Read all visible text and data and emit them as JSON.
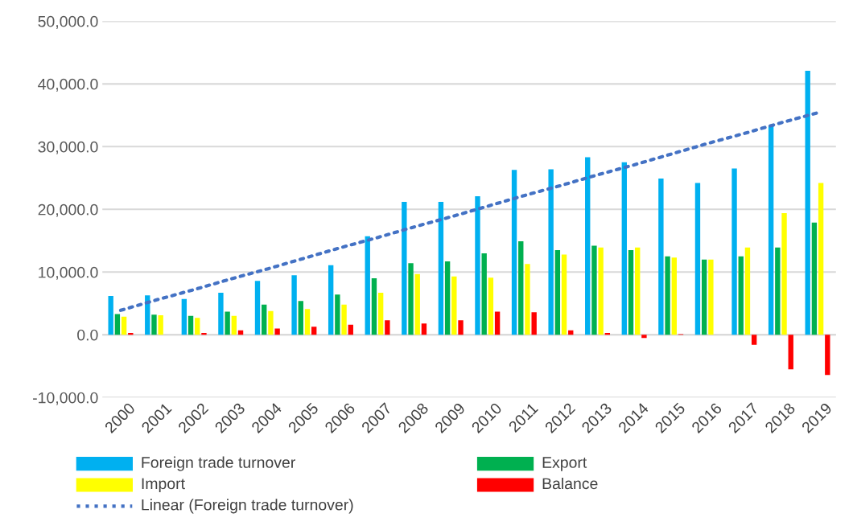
{
  "chart_data": {
    "type": "bar",
    "categories": [
      "2000",
      "2001",
      "2002",
      "2003",
      "2004",
      "2005",
      "2006",
      "2007",
      "2008",
      "2009",
      "2010",
      "2011",
      "2012",
      "2013",
      "2014",
      "2015",
      "2016",
      "2017",
      "2018",
      "2019"
    ],
    "series": [
      {
        "name": "Foreign trade turnover",
        "color": "#00b0f0",
        "values": [
          6200,
          6300,
          5700,
          6700,
          8600,
          9500,
          11100,
          15700,
          21200,
          21200,
          22100,
          26300,
          26400,
          28300,
          27500,
          24900,
          24200,
          26500,
          33400,
          42100
        ]
      },
      {
        "name": "Export",
        "color": "#00b050",
        "values": [
          3300,
          3200,
          3000,
          3700,
          4800,
          5400,
          6400,
          9000,
          11400,
          11700,
          13000,
          14900,
          13500,
          14200,
          13500,
          12500,
          12000,
          12500,
          13900,
          17900
        ]
      },
      {
        "name": "Import",
        "color": "#ffff00",
        "values": [
          2900,
          3100,
          2700,
          3000,
          3800,
          4100,
          4800,
          6700,
          9700,
          9300,
          9100,
          11300,
          12800,
          13900,
          13900,
          12300,
          12000,
          13900,
          19400,
          24200
        ]
      },
      {
        "name": "Balance",
        "color": "#ff0000",
        "values": [
          300,
          0,
          300,
          700,
          1000,
          1300,
          1600,
          2300,
          1800,
          2300,
          3700,
          3600,
          700,
          300,
          -500,
          100,
          0,
          -1600,
          -5500,
          -6400
        ]
      },
      {
        "name": "Linear (Foreign trade turnover)",
        "type": "line",
        "color": "#4472c4",
        "line_style": "dotted",
        "values": [
          3900,
          5600,
          7200,
          8900,
          10500,
          12200,
          13900,
          15500,
          17200,
          18800,
          20500,
          22200,
          23800,
          25500,
          27100,
          28800,
          30500,
          32100,
          33800,
          35400
        ]
      }
    ],
    "ylim": [
      -10000,
      50000
    ],
    "yticks": [
      {
        "value": -10000,
        "label": "-10,000.0"
      },
      {
        "value": 0,
        "label": "0.0"
      },
      {
        "value": 10000,
        "label": "10,000.0"
      },
      {
        "value": 20000,
        "label": "20,000.0"
      },
      {
        "value": 30000,
        "label": "30,000.0"
      },
      {
        "value": 40000,
        "label": "40,000.0"
      },
      {
        "value": 50000,
        "label": "50,000.0"
      }
    ],
    "grid": "y",
    "legend": "bottom"
  }
}
